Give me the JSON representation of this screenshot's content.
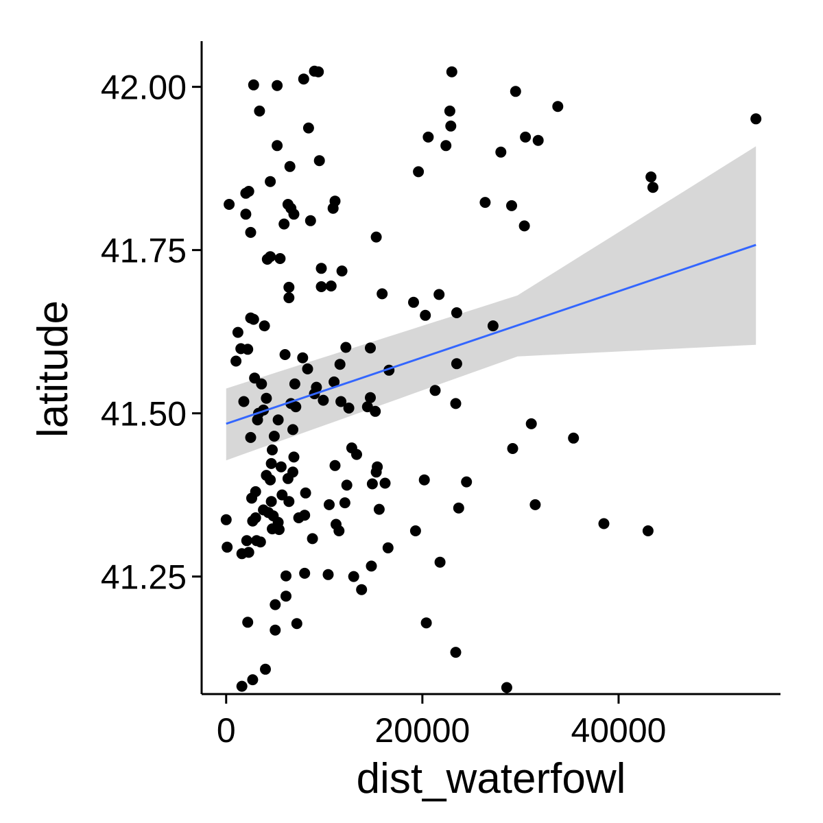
{
  "chart_data": {
    "type": "scatter",
    "title": "",
    "xlabel": "dist_waterfowl",
    "ylabel": "latitude",
    "xlim": [
      -2500,
      56500
    ],
    "ylim": [
      41.07,
      42.07
    ],
    "x_ticks": [
      0,
      20000,
      40000
    ],
    "x_tick_labels": [
      "0",
      "20000",
      "40000"
    ],
    "y_ticks": [
      41.25,
      41.5,
      41.75,
      42.0
    ],
    "y_tick_labels": [
      "41.25",
      "41.50",
      "41.75",
      "42.00"
    ],
    "grid": false,
    "legend": "none",
    "point_color": "#000000",
    "smooth_color": "#3366ff",
    "band_color": "#bdbdbd",
    "smooth": {
      "method": "linear",
      "x": [
        0,
        54000
      ],
      "fit": [
        41.484,
        41.758
      ],
      "lower": [
        41.428,
        41.605
      ],
      "upper": [
        41.538,
        41.909
      ]
    },
    "points": [
      [
        0,
        41.337
      ],
      [
        100,
        41.295
      ],
      [
        300,
        41.82
      ],
      [
        1000,
        41.58
      ],
      [
        1200,
        41.624
      ],
      [
        1500,
        41.599
      ],
      [
        1600,
        41.285
      ],
      [
        1600,
        41.082
      ],
      [
        1800,
        41.518
      ],
      [
        2000,
        41.837
      ],
      [
        2000,
        41.805
      ],
      [
        2100,
        41.305
      ],
      [
        2200,
        41.18
      ],
      [
        2200,
        41.598
      ],
      [
        2300,
        41.84
      ],
      [
        2300,
        41.287
      ],
      [
        2500,
        41.777
      ],
      [
        2500,
        41.646
      ],
      [
        2500,
        41.463
      ],
      [
        2600,
        41.37
      ],
      [
        2700,
        41.092
      ],
      [
        2700,
        41.335
      ],
      [
        2800,
        42.003
      ],
      [
        2800,
        41.644
      ],
      [
        2900,
        41.554
      ],
      [
        3000,
        41.34
      ],
      [
        3000,
        41.38
      ],
      [
        3100,
        41.305
      ],
      [
        3200,
        41.49
      ],
      [
        3300,
        41.5
      ],
      [
        3400,
        41.963
      ],
      [
        3500,
        41.303
      ],
      [
        3600,
        41.545
      ],
      [
        3800,
        41.505
      ],
      [
        3800,
        41.352
      ],
      [
        3900,
        41.634
      ],
      [
        4000,
        41.108
      ],
      [
        4100,
        41.405
      ],
      [
        4100,
        41.523
      ],
      [
        4200,
        41.736
      ],
      [
        4300,
        41.348
      ],
      [
        4500,
        41.855
      ],
      [
        4500,
        41.74
      ],
      [
        4500,
        41.398
      ],
      [
        4600,
        41.423
      ],
      [
        4600,
        41.365
      ],
      [
        4700,
        41.444
      ],
      [
        4700,
        41.323
      ],
      [
        4800,
        41.343
      ],
      [
        4900,
        41.465
      ],
      [
        5000,
        41.168
      ],
      [
        5000,
        41.207
      ],
      [
        5200,
        42.002
      ],
      [
        5200,
        41.91
      ],
      [
        5300,
        41.49
      ],
      [
        5300,
        41.333
      ],
      [
        5400,
        41.322
      ],
      [
        5500,
        41.737
      ],
      [
        5600,
        41.418
      ],
      [
        5700,
        41.375
      ],
      [
        5900,
        41.79
      ],
      [
        6000,
        41.59
      ],
      [
        6100,
        41.22
      ],
      [
        6100,
        41.251
      ],
      [
        6300,
        41.82
      ],
      [
        6300,
        41.4
      ],
      [
        6400,
        41.693
      ],
      [
        6400,
        41.677
      ],
      [
        6400,
        41.365
      ],
      [
        6500,
        41.878
      ],
      [
        6600,
        41.814
      ],
      [
        6600,
        41.515
      ],
      [
        6800,
        41.475
      ],
      [
        6800,
        41.41
      ],
      [
        6900,
        41.805
      ],
      [
        6900,
        41.433
      ],
      [
        7000,
        41.545
      ],
      [
        7100,
        41.51
      ],
      [
        7200,
        41.178
      ],
      [
        7400,
        41.34
      ],
      [
        7800,
        41.585
      ],
      [
        7900,
        42.012
      ],
      [
        8000,
        41.344
      ],
      [
        8000,
        41.255
      ],
      [
        8100,
        41.378
      ],
      [
        8300,
        41.568
      ],
      [
        8400,
        41.937
      ],
      [
        8600,
        41.795
      ],
      [
        8800,
        41.308
      ],
      [
        9000,
        42.024
      ],
      [
        9000,
        41.53
      ],
      [
        9200,
        41.54
      ],
      [
        9400,
        42.023
      ],
      [
        9500,
        41.887
      ],
      [
        9700,
        41.694
      ],
      [
        9700,
        41.722
      ],
      [
        9900,
        41.52
      ],
      [
        10400,
        41.253
      ],
      [
        10500,
        41.36
      ],
      [
        10700,
        41.695
      ],
      [
        10900,
        41.814
      ],
      [
        11000,
        41.548
      ],
      [
        11100,
        41.42
      ],
      [
        11100,
        41.825
      ],
      [
        11200,
        41.33
      ],
      [
        11500,
        41.32
      ],
      [
        11600,
        41.575
      ],
      [
        11700,
        41.518
      ],
      [
        11800,
        41.718
      ],
      [
        12100,
        41.363
      ],
      [
        12200,
        41.601
      ],
      [
        12300,
        41.39
      ],
      [
        12500,
        41.508
      ],
      [
        12800,
        41.447
      ],
      [
        13000,
        41.25
      ],
      [
        13300,
        41.437
      ],
      [
        13800,
        41.23
      ],
      [
        14400,
        41.51
      ],
      [
        14700,
        41.6
      ],
      [
        14700,
        41.524
      ],
      [
        14800,
        41.266
      ],
      [
        14900,
        41.392
      ],
      [
        15200,
        41.503
      ],
      [
        15300,
        41.41
      ],
      [
        15300,
        41.77
      ],
      [
        15400,
        41.418
      ],
      [
        15600,
        41.353
      ],
      [
        15900,
        41.683
      ],
      [
        16200,
        41.393
      ],
      [
        16500,
        41.294
      ],
      [
        16600,
        41.566
      ],
      [
        19100,
        41.67
      ],
      [
        19300,
        41.32
      ],
      [
        19600,
        41.87
      ],
      [
        20200,
        41.398
      ],
      [
        20300,
        41.65
      ],
      [
        20400,
        41.179
      ],
      [
        20600,
        41.923
      ],
      [
        21300,
        41.535
      ],
      [
        21700,
        41.682
      ],
      [
        21800,
        41.272
      ],
      [
        22400,
        41.91
      ],
      [
        22800,
        41.963
      ],
      [
        22900,
        41.94
      ],
      [
        23000,
        42.023
      ],
      [
        23400,
        41.515
      ],
      [
        23400,
        41.134
      ],
      [
        23500,
        41.654
      ],
      [
        23500,
        41.576
      ],
      [
        23700,
        41.355
      ],
      [
        24500,
        41.395
      ],
      [
        26400,
        41.823
      ],
      [
        27200,
        41.634
      ],
      [
        28000,
        41.9
      ],
      [
        28600,
        41.08
      ],
      [
        29100,
        41.818
      ],
      [
        29200,
        41.446
      ],
      [
        29500,
        41.993
      ],
      [
        30400,
        41.787
      ],
      [
        30500,
        41.923
      ],
      [
        31100,
        41.484
      ],
      [
        31500,
        41.36
      ],
      [
        31800,
        41.918
      ],
      [
        33800,
        41.97
      ],
      [
        35400,
        41.462
      ],
      [
        38500,
        41.331
      ],
      [
        43000,
        41.32
      ],
      [
        43300,
        41.862
      ],
      [
        43500,
        41.846
      ],
      [
        54000,
        41.951
      ]
    ]
  }
}
